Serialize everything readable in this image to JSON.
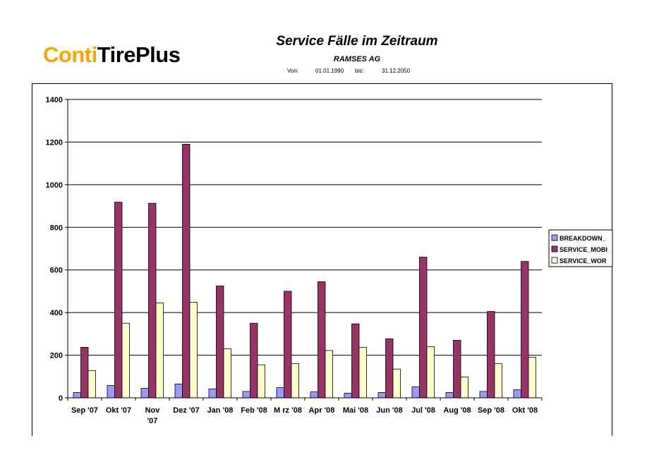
{
  "header": {
    "logo_part1": "Conti",
    "logo_part2": "TirePlus",
    "title": "Service Fälle im Zeitraum",
    "subtitle": "RAMSES AG",
    "from_label": "Von:",
    "from_date": "01.01.1990",
    "to_label": "bis:",
    "to_date": "31.12.2050"
  },
  "colors": {
    "brand_orange": "#f7a600",
    "series1": "#9999ff",
    "series2": "#993366",
    "series3": "#ffffcc"
  },
  "chart_data": {
    "type": "bar",
    "title": "",
    "xlabel": "",
    "ylabel": "",
    "ylim": [
      0,
      1400
    ],
    "yticks": [
      0,
      200,
      400,
      600,
      800,
      1000,
      1200,
      1400
    ],
    "grid": true,
    "legend_position": "right",
    "categories": [
      "Sep '07",
      "Okt '07",
      "Nov '07",
      "Dez '07",
      "Jan '08",
      "Feb '08",
      "M rz '08",
      "Apr '08",
      "Mai '08",
      "Jun '08",
      "Jul '08",
      "Aug '08",
      "Sep '08",
      "Okt '08"
    ],
    "series": [
      {
        "name": "BREAKDOWN_",
        "color": "#9999ff",
        "values": [
          25,
          58,
          45,
          65,
          42,
          30,
          48,
          28,
          22,
          25,
          52,
          25,
          30,
          38
        ]
      },
      {
        "name": "SERVICE_MOBI",
        "color": "#993366",
        "values": [
          237,
          918,
          913,
          1190,
          525,
          350,
          500,
          545,
          347,
          277,
          660,
          270,
          405,
          640
        ]
      },
      {
        "name": "SERVICE_WOR",
        "color": "#ffffcc",
        "values": [
          128,
          350,
          445,
          448,
          230,
          155,
          160,
          222,
          237,
          135,
          240,
          98,
          160,
          190
        ]
      }
    ]
  }
}
